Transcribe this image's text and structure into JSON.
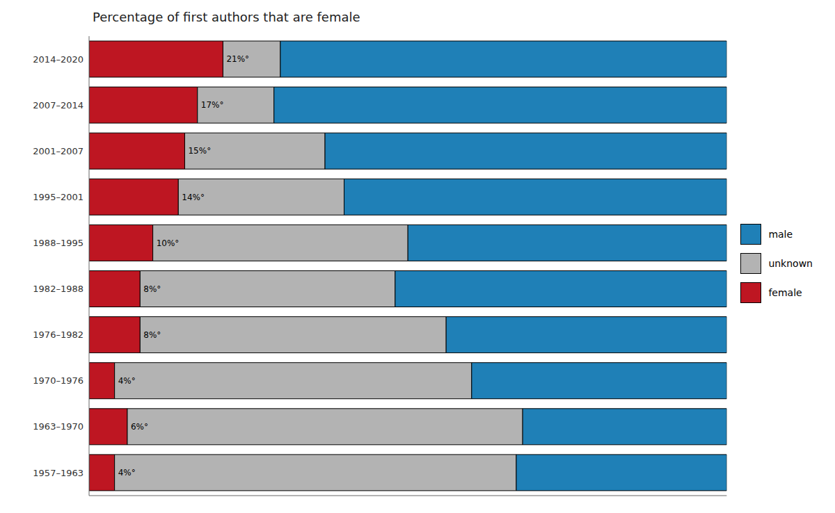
{
  "chart_data": {
    "type": "bar",
    "title": "Percentage of first authors that are female",
    "orientation": "horizontal",
    "stacked": true,
    "categories": [
      "2014–2020",
      "2007–2014",
      "2001–2007",
      "1995–2001",
      "1988–1995",
      "1982–1988",
      "1976–1982",
      "1970–1976",
      "1963–1970",
      "1957–1963"
    ],
    "series": [
      {
        "name": "female",
        "color": "#be1622",
        "values": [
          21,
          17,
          15,
          14,
          10,
          8,
          8,
          4,
          6,
          4
        ],
        "data_labels": true,
        "value_labels": [
          "21%°",
          "17%°",
          "15%°",
          "14%°",
          "10%°",
          "8%°",
          "8%°",
          "4%°",
          "6%°",
          "4%°"
        ]
      },
      {
        "name": "unknown",
        "color": "#b3b3b3",
        "values": [
          9,
          12,
          22,
          26,
          40,
          40,
          48,
          56,
          62,
          63
        ]
      },
      {
        "name": "male",
        "color": "#1f80b7",
        "values": [
          70,
          71,
          63,
          60,
          50,
          52,
          44,
          40,
          32,
          33
        ]
      }
    ],
    "xlim": [
      0,
      100
    ],
    "tick_labels": "y",
    "grid": false,
    "legend": "right"
  }
}
